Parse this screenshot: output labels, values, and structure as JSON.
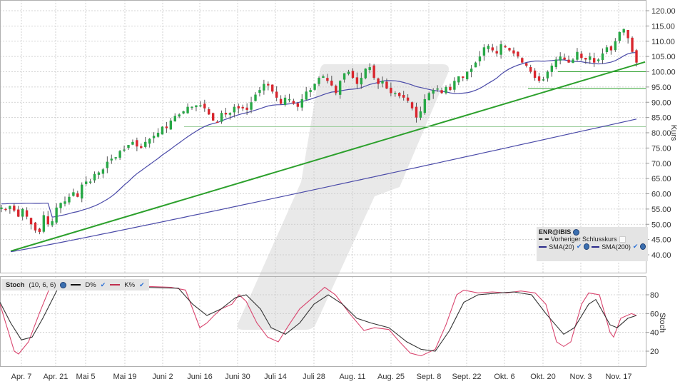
{
  "chart_data": [
    {
      "type": "candlestick",
      "title": "ENR@IBIS",
      "ylabel": "Kurs",
      "ylim": [
        36,
        122
      ],
      "yticks": [
        40,
        45,
        50,
        55,
        60,
        65,
        70,
        75,
        80,
        85,
        90,
        95,
        100,
        105,
        110,
        115,
        120
      ],
      "ytick_labels": [
        "40.00",
        "45.00",
        "50.00",
        "55.00",
        "60.00",
        "65.00",
        "70.00",
        "75.00",
        "80.00",
        "85.00",
        "90.00",
        "95.00",
        "100.00",
        "105.00",
        "110.00",
        "115.00",
        "120.00"
      ],
      "xtick_labels": [
        "Apr. 7",
        "Apr. 21",
        "Mai 5",
        "Mai 19",
        "Juni 2",
        "Juni 16",
        "Juni 30",
        "Juli 14",
        "Juli 28",
        "Aug. 11",
        "Aug. 25",
        "Sept. 8",
        "Sept. 22",
        "Okt. 6",
        "Okt. 20",
        "Nov. 3",
        "Nov. 17"
      ],
      "xtick_pos": [
        30,
        78,
        120,
        175,
        228,
        280,
        333,
        386,
        440,
        494,
        548,
        601,
        654,
        707,
        761,
        814,
        867
      ],
      "grid": true,
      "legend": {
        "position": "lower-right",
        "entries": [
          "Vorheriger Schlusskurs",
          "SMA(20)",
          "SMA(200)"
        ]
      },
      "candles_close": [
        55.5,
        55,
        56,
        54.5,
        52.5,
        55,
        52.5,
        50,
        48,
        47.5,
        53,
        50,
        51,
        55.5,
        57,
        57.5,
        59,
        60.5,
        59,
        63,
        64,
        64,
        66.5,
        67,
        68,
        70.5,
        71.5,
        72,
        74,
        74.5,
        76,
        77,
        75.5,
        75,
        77,
        78,
        79,
        80,
        82,
        81.5,
        84,
        85.5,
        86,
        87,
        88.5,
        88.5,
        89,
        89,
        88,
        86,
        84,
        83.5,
        86.5,
        86,
        86.5,
        88.5,
        88,
        88,
        87.5,
        90,
        92.5,
        94,
        96,
        95.5,
        93.5,
        91.5,
        89.5,
        91.5,
        91,
        89.5,
        88.5,
        91,
        93.5,
        94,
        96,
        98,
        98.5,
        97,
        95.5,
        93,
        97,
        99.5,
        100,
        98,
        96,
        98,
        101,
        101.5,
        98,
        96,
        97,
        94.5,
        93,
        93,
        92,
        91.5,
        90.5,
        88,
        85,
        87,
        91,
        93,
        94,
        94.5,
        93,
        95,
        94,
        97,
        98.5,
        98,
        100,
        101,
        103,
        105,
        108,
        108.5,
        107,
        106,
        109,
        108,
        107,
        106,
        105,
        103,
        102,
        100,
        98,
        97,
        97.5,
        100,
        102,
        104,
        105,
        104,
        103,
        104,
        106.5,
        104.5,
        104,
        105,
        103,
        104,
        106,
        108,
        107,
        110,
        113,
        114,
        111,
        106.5,
        103
      ],
      "trendlines": [
        {
          "name": "support-trend",
          "from": [
            "Apr. 7",
            41.2
          ],
          "to": [
            "Nov. 24",
            103.2
          ],
          "color": "#2ca02c"
        },
        {
          "name": "horizontal-100",
          "value": 100,
          "color": "#2ca02c"
        },
        {
          "name": "horizontal-94.5",
          "value": 94.5,
          "color": "#2ca02c"
        },
        {
          "name": "horizontal-82",
          "value": 82,
          "color": "#9fcf9f"
        }
      ],
      "sma20": {
        "start": 57.5,
        "end": 106.5
      },
      "sma200": {
        "start": 41,
        "end": 84.5
      }
    },
    {
      "type": "line",
      "title": "Stoch",
      "params": "(10, 6, 6)",
      "ylabel": "Stoch",
      "ylim": [
        0,
        100
      ],
      "yticks": [
        20,
        40,
        60,
        80
      ],
      "series": [
        {
          "name": "D%",
          "color": "#333333"
        },
        {
          "name": "K%",
          "color": "#d9466f"
        }
      ]
    }
  ],
  "price_panel": {
    "symbol": "ENR@IBIS",
    "axis_title": "Kurs",
    "legend": {
      "title": "ENR@IBIS",
      "prev_close_label": "Vorheriger Schlusskurs",
      "sma20_label": "SMA(20)",
      "sma200_label": "SMA(200)"
    }
  },
  "stoch_panel": {
    "title": "Stoch",
    "params": "(10, 6, 6)",
    "d_label": "D%",
    "k_label": "K%",
    "axis_title": "Stoch",
    "yticks": [
      "80",
      "60",
      "40",
      "20"
    ]
  },
  "colors": {
    "up": "#27a846",
    "down": "#d9262e",
    "wick": "#555555",
    "sma": "#4a4aa8",
    "trend": "#2ca02c",
    "grid": "#c8c8c8",
    "stoch_k": "#d9466f",
    "stoch_d": "#333333",
    "watermark": "#e6e6e6"
  }
}
